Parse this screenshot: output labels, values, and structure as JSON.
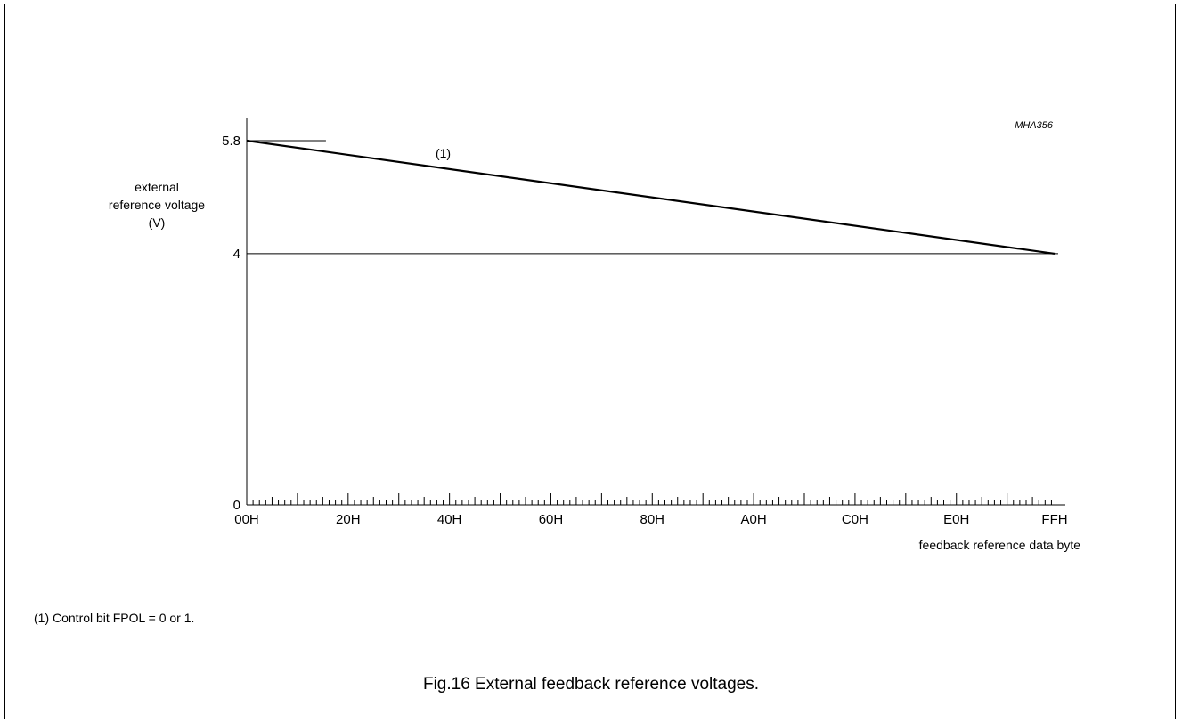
{
  "chart_data": {
    "type": "line",
    "ref_code": "MHA356",
    "xlabel": "feedback reference data byte",
    "ylabel_lines": [
      "external",
      "reference voltage",
      "(V)"
    ],
    "x_domain": [
      0,
      255
    ],
    "y_domain": [
      0,
      5.8
    ],
    "x_ticks": [
      {
        "value": 0,
        "label": "00H"
      },
      {
        "value": 32,
        "label": "20H"
      },
      {
        "value": 64,
        "label": "40H"
      },
      {
        "value": 96,
        "label": "60H"
      },
      {
        "value": 128,
        "label": "80H"
      },
      {
        "value": 160,
        "label": "A0H"
      },
      {
        "value": 192,
        "label": "C0H"
      },
      {
        "value": 224,
        "label": "E0H"
      },
      {
        "value": 255,
        "label": "FFH"
      }
    ],
    "y_ticks": [
      {
        "value": 0,
        "label": "0"
      },
      {
        "value": 4,
        "label": "4"
      },
      {
        "value": 5.8,
        "label": "5.8"
      }
    ],
    "reference_lines": [
      {
        "y": 4,
        "x_from": 0,
        "x_to": 255
      },
      {
        "y": 5.8,
        "x_from": 0,
        "x_to": 25
      }
    ],
    "series": [
      {
        "label": "(1)",
        "label_x": 62,
        "points": [
          [
            0,
            5.8
          ],
          [
            255,
            4
          ]
        ]
      }
    ],
    "minor_tick_step": 2
  },
  "footnote": "(1)   Control bit FPOL = 0 or 1.",
  "caption": "Fig.16  External feedback reference voltages."
}
